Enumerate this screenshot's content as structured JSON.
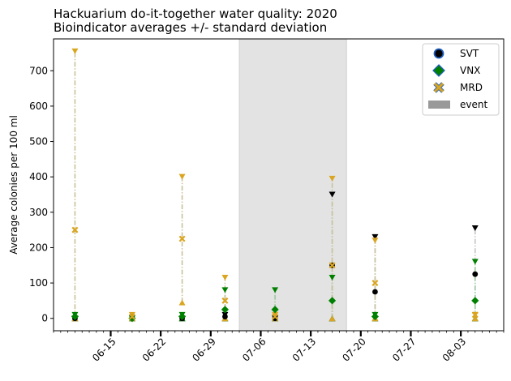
{
  "chart_data": {
    "type": "scatter",
    "title": "Hackuarium do-it-together water quality: 2020",
    "subtitle": "Bioindicator averages +/- standard deviation",
    "xlabel": "",
    "ylabel": "Average colonies per 100 ml",
    "x_axis": "date",
    "xlim": [
      "2020-06-07",
      "2020-08-09"
    ],
    "ylim": [
      -35,
      790
    ],
    "xticks": [
      "2020-06-15",
      "2020-06-22",
      "2020-06-29",
      "2020-07-06",
      "2020-07-13",
      "2020-07-20",
      "2020-07-27",
      "2020-08-03"
    ],
    "xtick_labels": [
      "06-15",
      "06-22",
      "06-29",
      "07-06",
      "07-13",
      "07-20",
      "07-27",
      "08-03"
    ],
    "yticks": [
      0,
      100,
      200,
      300,
      400,
      500,
      600,
      700
    ],
    "grid": false,
    "legend_position": "top-right",
    "event": {
      "name": "event",
      "start": "2020-07-03",
      "end": "2020-07-18",
      "color": "#e3e3e3"
    },
    "series": [
      {
        "name": "SVT",
        "marker": "circle",
        "color": "#000000",
        "error_color": "#c4c4c4",
        "points": [
          {
            "x": "2020-06-10",
            "y": 0,
            "low": 0,
            "high": 0
          },
          {
            "x": "2020-06-18",
            "y": 0,
            "low": 0,
            "high": 0
          },
          {
            "x": "2020-06-25",
            "y": 0,
            "low": 0,
            "high": 0
          },
          {
            "x": "2020-07-01",
            "y": 5,
            "low": 0,
            "high": 10
          },
          {
            "x": "2020-07-08",
            "y": 0,
            "low": 0,
            "high": 0
          },
          {
            "x": "2020-07-16",
            "y": 150,
            "low": 0,
            "high": 350
          },
          {
            "x": "2020-07-22",
            "y": 75,
            "low": 0,
            "high": 230
          },
          {
            "x": "2020-08-05",
            "y": 125,
            "low": 0,
            "high": 255
          }
        ]
      },
      {
        "name": "VNX",
        "marker": "diamond",
        "color": "#008000",
        "error_color": "#9ec79e",
        "points": [
          {
            "x": "2020-06-10",
            "y": 5,
            "low": 0,
            "high": 10
          },
          {
            "x": "2020-06-18",
            "y": 0,
            "low": 0,
            "high": 0
          },
          {
            "x": "2020-06-25",
            "y": 5,
            "low": 0,
            "high": 10
          },
          {
            "x": "2020-07-01",
            "y": 25,
            "low": 0,
            "high": 80
          },
          {
            "x": "2020-07-08",
            "y": 25,
            "low": 0,
            "high": 80
          },
          {
            "x": "2020-07-16",
            "y": 50,
            "low": 0,
            "high": 115
          },
          {
            "x": "2020-07-22",
            "y": 5,
            "low": 0,
            "high": 10
          },
          {
            "x": "2020-08-05",
            "y": 50,
            "low": 0,
            "high": 160
          }
        ]
      },
      {
        "name": "MRD",
        "marker": "x",
        "color": "#daa520",
        "error_color": "#c9c29a",
        "points": [
          {
            "x": "2020-06-10",
            "y": 250,
            "low": 0,
            "high": 755
          },
          {
            "x": "2020-06-18",
            "y": 5,
            "low": 0,
            "high": 10
          },
          {
            "x": "2020-06-25",
            "y": 225,
            "low": 45,
            "high": 400
          },
          {
            "x": "2020-07-01",
            "y": 50,
            "low": 0,
            "high": 115
          },
          {
            "x": "2020-07-08",
            "y": 5,
            "low": 0,
            "high": 10
          },
          {
            "x": "2020-07-16",
            "y": 150,
            "low": 0,
            "high": 395
          },
          {
            "x": "2020-07-22",
            "y": 100,
            "low": 0,
            "high": 220
          },
          {
            "x": "2020-08-05",
            "y": 10,
            "low": 0,
            "high": 10
          }
        ]
      }
    ]
  }
}
